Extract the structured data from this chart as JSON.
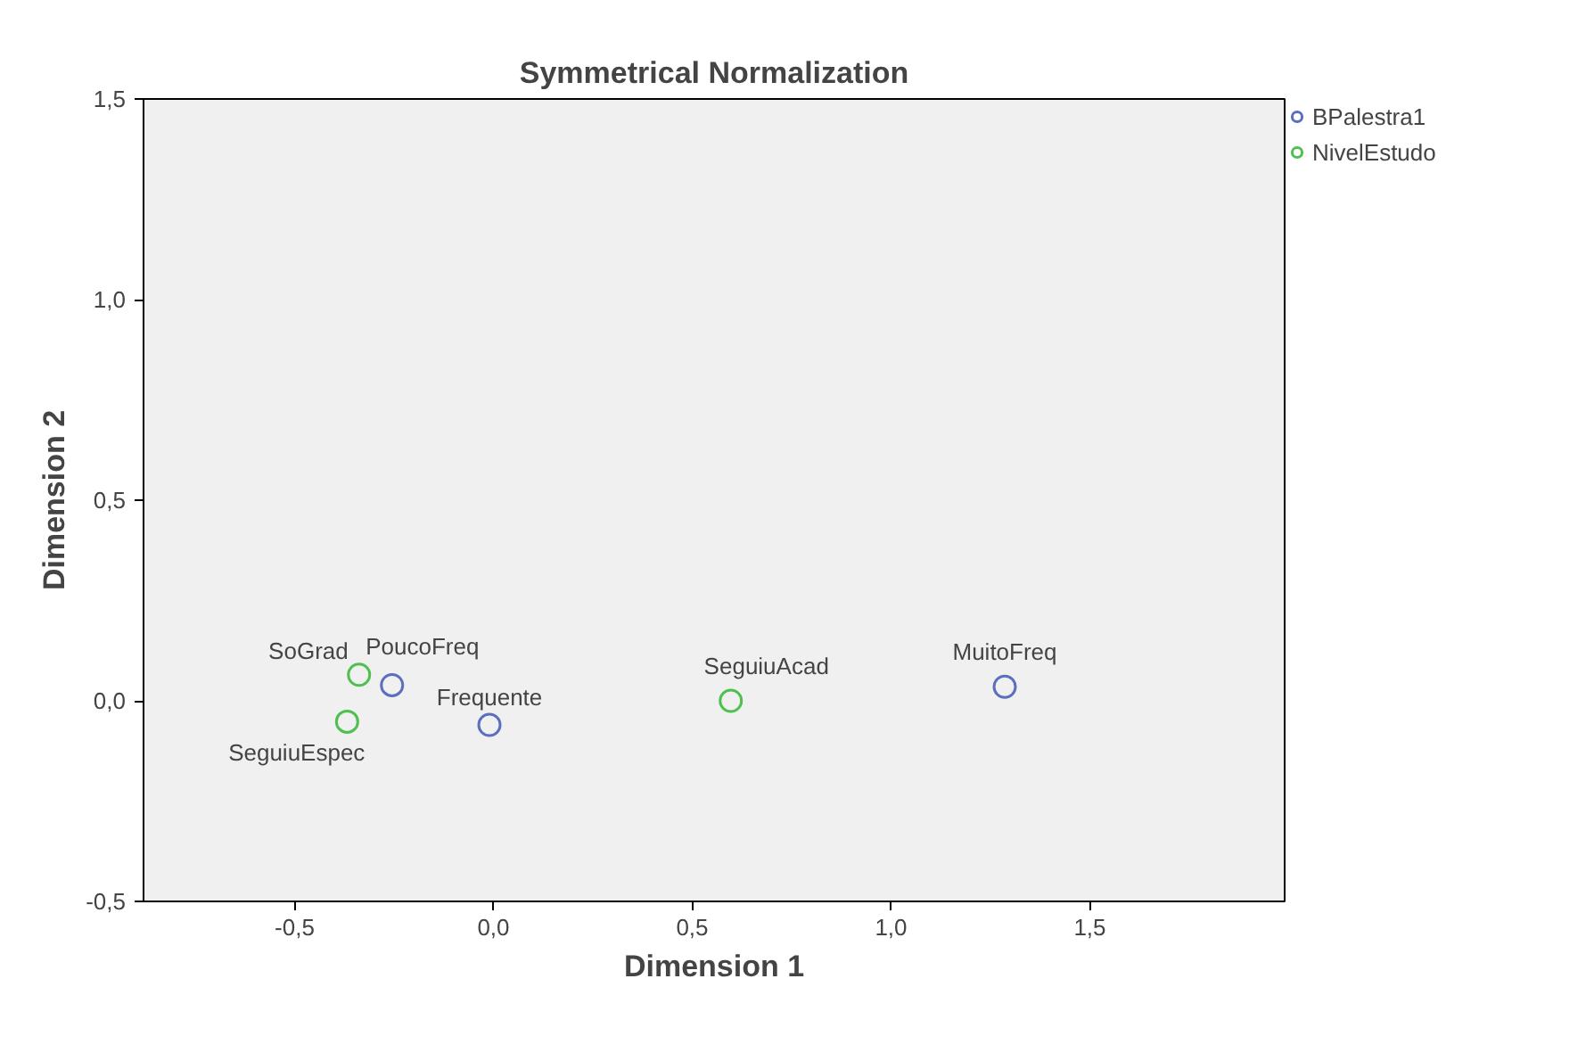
{
  "chart_data": {
    "type": "scatter",
    "title": "Symmetrical Normalization",
    "xlabel": "Dimension 1",
    "ylabel": "Dimension 2",
    "xlim": [
      -0.88,
      1.99
    ],
    "ylim": [
      -0.5,
      1.5
    ],
    "xticks": [
      {
        "value": -0.5,
        "label": "-0,5"
      },
      {
        "value": 0,
        "label": "0,0"
      },
      {
        "value": 0.5,
        "label": "0,5"
      },
      {
        "value": 1,
        "label": "1,0"
      },
      {
        "value": 1.5,
        "label": "1,5"
      }
    ],
    "yticks": [
      {
        "value": -0.5,
        "label": "-0,5"
      },
      {
        "value": 0,
        "label": "0,0"
      },
      {
        "value": 0.5,
        "label": "0,5"
      },
      {
        "value": 1,
        "label": "1,0"
      },
      {
        "value": 1.5,
        "label": "1,5"
      }
    ],
    "grid": false,
    "legend": "top right",
    "marker": "circle",
    "series": [
      {
        "name": "BPalestra1",
        "color": "#5b6fbf",
        "x": [
          -0.255,
          -0.01,
          1.286
        ],
        "values": [
          0.039,
          -0.06,
          0.035
        ]
      },
      {
        "name": "NivelEstudo",
        "color": "#4fc04f",
        "x": [
          -0.338,
          -0.368,
          0.597
        ],
        "values": [
          0.065,
          -0.052,
          0.0
        ]
      }
    ],
    "annotations": [
      {
        "text": "PoucoFreq",
        "x": -0.255,
        "y": 0.039
      },
      {
        "text": "Frequente",
        "x": -0.01,
        "y": -0.06
      },
      {
        "text": "MuitoFreq",
        "x": 1.286,
        "y": 0.035
      },
      {
        "text": "SoGrad",
        "x": -0.338,
        "y": 0.065
      },
      {
        "text": "SeguiuEspec",
        "x": -0.368,
        "y": -0.052
      },
      {
        "text": "SeguiuAcad",
        "x": 0.597,
        "y": 0.0
      }
    ]
  }
}
